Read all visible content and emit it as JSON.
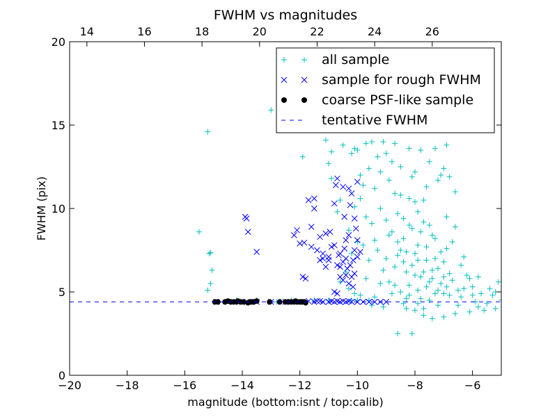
{
  "chart_data": {
    "type": "scatter",
    "title": "FWHM vs magnitudes",
    "xlabel": "magnitude (bottom:isnt / top:calib)",
    "ylabel": "FWHM (pix)",
    "xlim": [
      -20,
      -5
    ],
    "ylim": [
      0,
      20
    ],
    "x_ticks": [
      -20,
      -18,
      -16,
      -14,
      -12,
      -10,
      -8,
      -6
    ],
    "x_tick_labels": [
      "−20",
      "−18",
      "−16",
      "−14",
      "−12",
      "−10",
      "−8",
      "−6"
    ],
    "y_ticks": [
      0,
      5,
      10,
      15,
      20
    ],
    "y_tick_labels": [
      "0",
      "5",
      "10",
      "15",
      "20"
    ],
    "top_axis": {
      "offset": 33.4,
      "ticks": [
        14,
        16,
        18,
        20,
        22,
        24,
        26
      ],
      "tick_labels": [
        "14",
        "16",
        "18",
        "20",
        "22",
        "24",
        "26"
      ]
    },
    "legend_placement": "top-right",
    "series": [
      {
        "name": "all sample",
        "marker": "plus",
        "color": "#00bfbf",
        "points": [
          [
            -15.5,
            8.6
          ],
          [
            -15.2,
            14.6
          ],
          [
            -15.15,
            7.3
          ],
          [
            -15.1,
            7.35
          ],
          [
            -15.05,
            6.3
          ],
          [
            -15.1,
            5.5
          ],
          [
            -15.2,
            5.1
          ],
          [
            -12.8,
            4.4
          ],
          [
            -13.0,
            15.9
          ],
          [
            -11.9,
            13.1
          ],
          [
            -11.0,
            12.7
          ],
          [
            -10.9,
            11.8
          ],
          [
            -10.7,
            9.8
          ],
          [
            -10.6,
            10.5
          ],
          [
            -11.1,
            14.1
          ],
          [
            -10.9,
            13.4
          ],
          [
            -10.5,
            13.8
          ],
          [
            -10.2,
            13.3
          ],
          [
            -10.1,
            13.6
          ],
          [
            -10.0,
            13.5
          ],
          [
            -9.9,
            12.0
          ],
          [
            -9.7,
            13.9
          ],
          [
            -9.6,
            12.4
          ],
          [
            -9.5,
            14.0
          ],
          [
            -9.3,
            13.1
          ],
          [
            -9.1,
            14.0
          ],
          [
            -9.0,
            13.3
          ],
          [
            -8.8,
            12.8
          ],
          [
            -8.7,
            13.9
          ],
          [
            -8.5,
            12.5
          ],
          [
            -8.3,
            14.9
          ],
          [
            -8.2,
            13.6
          ],
          [
            -8.0,
            12.2
          ],
          [
            -7.8,
            13.5
          ],
          [
            -7.5,
            12.8
          ],
          [
            -7.3,
            13.6
          ],
          [
            -7.2,
            11.7
          ],
          [
            -6.9,
            13.8
          ],
          [
            -6.8,
            11.9
          ],
          [
            -6.6,
            11.0
          ],
          [
            -7.0,
            12.4
          ],
          [
            -7.6,
            11.3
          ],
          [
            -8.9,
            11.7
          ],
          [
            -9.4,
            11.2
          ],
          [
            -9.8,
            11.4
          ],
          [
            -9.9,
            10.6
          ],
          [
            -10.1,
            10.1
          ],
          [
            -10.3,
            8.7
          ],
          [
            -10.4,
            6.2
          ],
          [
            -10.6,
            5.6
          ],
          [
            -10.3,
            5.2
          ],
          [
            -10.1,
            4.9
          ],
          [
            -9.9,
            4.8
          ],
          [
            -9.6,
            6.9
          ],
          [
            -9.4,
            8.1
          ],
          [
            -9.2,
            10.0
          ],
          [
            -9.0,
            9.3
          ],
          [
            -8.8,
            8.6
          ],
          [
            -8.6,
            9.7
          ],
          [
            -8.5,
            10.8
          ],
          [
            -8.4,
            8.2
          ],
          [
            -8.3,
            7.4
          ],
          [
            -8.2,
            9.0
          ],
          [
            -8.1,
            8.8
          ],
          [
            -8.0,
            10.4
          ],
          [
            -7.9,
            6.9
          ],
          [
            -7.8,
            8.6
          ],
          [
            -7.7,
            6.2
          ],
          [
            -7.6,
            7.7
          ],
          [
            -7.5,
            9.0
          ],
          [
            -7.4,
            5.8
          ],
          [
            -7.3,
            7.0
          ],
          [
            -7.2,
            6.4
          ],
          [
            -7.1,
            5.5
          ],
          [
            -7.0,
            4.9
          ],
          [
            -6.9,
            5.3
          ],
          [
            -6.8,
            6.1
          ],
          [
            -6.7,
            5.7
          ],
          [
            -6.5,
            5.1
          ],
          [
            -6.4,
            4.7
          ],
          [
            -6.2,
            6.0
          ],
          [
            -6.0,
            5.3
          ],
          [
            -5.9,
            4.4
          ],
          [
            -5.7,
            4.9
          ],
          [
            -5.5,
            4.3
          ],
          [
            -5.3,
            4.8
          ],
          [
            -5.1,
            5.6
          ],
          [
            -5.0,
            4.5
          ],
          [
            -5.2,
            4.0
          ],
          [
            -5.6,
            3.9
          ],
          [
            -6.1,
            3.8
          ],
          [
            -6.6,
            3.7
          ],
          [
            -7.0,
            3.5
          ],
          [
            -7.4,
            3.4
          ],
          [
            -7.7,
            3.6
          ],
          [
            -8.0,
            3.9
          ],
          [
            -8.3,
            4.0
          ],
          [
            -8.6,
            2.5
          ],
          [
            -8.1,
            2.5
          ],
          [
            -9.1,
            4.1
          ],
          [
            -9.5,
            4.2
          ],
          [
            -8.9,
            5.6
          ],
          [
            -8.7,
            6.5
          ],
          [
            -8.5,
            5.0
          ],
          [
            -8.4,
            6.8
          ],
          [
            -8.2,
            5.4
          ],
          [
            -8.0,
            6.0
          ],
          [
            -7.9,
            5.1
          ],
          [
            -7.8,
            4.6
          ],
          [
            -7.6,
            5.3
          ],
          [
            -7.5,
            4.5
          ],
          [
            -7.3,
            4.9
          ],
          [
            -7.2,
            4.2
          ],
          [
            -7.0,
            6.8
          ],
          [
            -6.9,
            7.6
          ],
          [
            -6.7,
            8.0
          ],
          [
            -6.4,
            6.6
          ],
          [
            -6.3,
            7.1
          ],
          [
            -6.1,
            5.8
          ],
          [
            -5.8,
            5.9
          ],
          [
            -8.6,
            8.0
          ],
          [
            -8.4,
            9.4
          ],
          [
            -8.2,
            10.6
          ],
          [
            -8.1,
            11.9
          ],
          [
            -7.9,
            9.8
          ],
          [
            -7.7,
            9.2
          ],
          [
            -7.4,
            8.4
          ],
          [
            -7.1,
            7.4
          ],
          [
            -9.3,
            7.5
          ],
          [
            -9.1,
            6.3
          ],
          [
            -9.7,
            5.8
          ],
          [
            -8.8,
            4.9
          ],
          [
            -8.3,
            4.6
          ],
          [
            -7.1,
            12.0
          ],
          [
            -7.7,
            10.5
          ],
          [
            -8.7,
            10.9
          ],
          [
            -9.2,
            12.2
          ],
          [
            -9.7,
            9.5
          ],
          [
            -10.2,
            7.3
          ],
          [
            -10.0,
            8.0
          ],
          [
            -9.8,
            7.8
          ],
          [
            -9.5,
            9.1
          ],
          [
            -9.0,
            7.0
          ],
          [
            -8.9,
            8.4
          ],
          [
            -8.6,
            7.2
          ],
          [
            -8.1,
            6.6
          ],
          [
            -7.9,
            7.8
          ],
          [
            -7.6,
            6.9
          ],
          [
            -7.3,
            8.2
          ],
          [
            -6.9,
            9.5
          ],
          [
            -6.6,
            8.9
          ],
          [
            -6.3,
            5.2
          ],
          [
            -6.0,
            4.8
          ],
          [
            -5.4,
            5.2
          ],
          [
            -7.8,
            5.9
          ],
          [
            -7.2,
            5.1
          ],
          [
            -8.3,
            6.2
          ],
          [
            -8.5,
            7.5
          ],
          [
            -8.0,
            7.3
          ],
          [
            -7.4,
            6.3
          ],
          [
            -7.0,
            5.9
          ],
          [
            -6.8,
            4.8
          ],
          [
            -7.5,
            5.6
          ],
          [
            -7.9,
            4.3
          ],
          [
            -8.2,
            4.8
          ],
          [
            -5.2,
            5.0
          ],
          [
            -5.8,
            4.1
          ],
          [
            -6.5,
            4.2
          ],
          [
            -7.7,
            4.0
          ],
          [
            -8.4,
            4.3
          ],
          [
            -8.7,
            5.4
          ],
          [
            -9.2,
            5.5
          ],
          [
            -9.4,
            4.7
          ],
          [
            -10.2,
            4.5
          ],
          [
            -10.0,
            4.5
          ],
          [
            -9.6,
            4.5
          ],
          [
            -11.0,
            4.5
          ],
          [
            -11.5,
            4.5
          ],
          [
            -12.3,
            4.5
          ],
          [
            -13.5,
            4.5
          ],
          [
            -14.2,
            4.5
          ]
        ]
      },
      {
        "name": "sample for rough FWHM",
        "marker": "x",
        "color": "#0000ff",
        "points": [
          [
            -13.9,
            9.5
          ],
          [
            -13.85,
            9.4
          ],
          [
            -13.8,
            8.6
          ],
          [
            -13.5,
            7.4
          ],
          [
            -12.2,
            8.4
          ],
          [
            -12.0,
            7.9
          ],
          [
            -11.85,
            7.95
          ],
          [
            -12.1,
            8.7
          ],
          [
            -11.6,
            8.9
          ],
          [
            -11.5,
            10.6
          ],
          [
            -11.7,
            10.5
          ],
          [
            -11.5,
            10.0
          ],
          [
            -11.3,
            8.3
          ],
          [
            -11.2,
            7.3
          ],
          [
            -11.1,
            8.5
          ],
          [
            -11.0,
            7.1
          ],
          [
            -10.95,
            8.6
          ],
          [
            -10.8,
            10.3
          ],
          [
            -10.75,
            11.4
          ],
          [
            -10.7,
            11.8
          ],
          [
            -10.5,
            11.3
          ],
          [
            -10.45,
            9.5
          ],
          [
            -10.4,
            8.1
          ],
          [
            -10.6,
            7.3
          ],
          [
            -10.6,
            6.5
          ],
          [
            -10.5,
            6.8
          ],
          [
            -10.4,
            7.0
          ],
          [
            -10.35,
            6.4
          ],
          [
            -10.3,
            5.5
          ],
          [
            -10.2,
            5.9
          ],
          [
            -10.15,
            6.9
          ],
          [
            -10.1,
            7.5
          ],
          [
            -10.0,
            8.1
          ],
          [
            -10.05,
            8.8
          ],
          [
            -10.1,
            9.4
          ],
          [
            -10.2,
            10.9
          ],
          [
            -10.3,
            11.2
          ],
          [
            -10.0,
            11.6
          ],
          [
            -10.25,
            10.2
          ],
          [
            -10.3,
            8.4
          ],
          [
            -10.4,
            6.0
          ],
          [
            -10.5,
            5.7
          ],
          [
            -10.6,
            5.9
          ],
          [
            -10.7,
            6.6
          ],
          [
            -10.8,
            7.8
          ],
          [
            -10.9,
            7.7
          ],
          [
            -11.0,
            6.9
          ],
          [
            -11.1,
            6.5
          ],
          [
            -11.2,
            7.0
          ],
          [
            -11.3,
            6.9
          ],
          [
            -11.4,
            7.5
          ],
          [
            -11.6,
            7.7
          ],
          [
            -10.8,
            5.0
          ],
          [
            -10.7,
            4.9
          ],
          [
            -10.1,
            6.1
          ],
          [
            -10.0,
            7.1
          ],
          [
            -9.9,
            7.4
          ],
          [
            -10.15,
            5.3
          ],
          [
            -10.25,
            6.6
          ],
          [
            -10.45,
            7.6
          ],
          [
            -11.9,
            5.9
          ],
          [
            -11.8,
            5.8
          ],
          [
            -10.65,
            7.2
          ],
          [
            -14.9,
            4.4
          ],
          [
            -14.5,
            4.4
          ],
          [
            -14.0,
            4.4
          ],
          [
            -13.5,
            4.4
          ],
          [
            -13.0,
            4.4
          ],
          [
            -12.5,
            4.4
          ],
          [
            -12.0,
            4.4
          ],
          [
            -11.5,
            4.4
          ],
          [
            -11.2,
            4.4
          ],
          [
            -11.0,
            4.4
          ],
          [
            -10.8,
            4.4
          ],
          [
            -10.6,
            4.4
          ],
          [
            -10.4,
            4.4
          ],
          [
            -10.2,
            4.4
          ],
          [
            -10.0,
            4.4
          ],
          [
            -9.8,
            4.4
          ],
          [
            -9.6,
            4.4
          ],
          [
            -9.4,
            4.4
          ],
          [
            -9.2,
            4.4
          ],
          [
            -9.0,
            4.4
          ],
          [
            -11.4,
            4.45
          ],
          [
            -11.7,
            4.45
          ],
          [
            -11.3,
            4.45
          ],
          [
            -10.9,
            4.45
          ],
          [
            -10.7,
            4.45
          ],
          [
            -10.5,
            4.45
          ],
          [
            -10.3,
            4.45
          ]
        ]
      },
      {
        "name": "coarse PSF-like sample",
        "marker": "circle",
        "color": "#000000",
        "points": [
          [
            -14.95,
            4.4
          ],
          [
            -14.85,
            4.4
          ],
          [
            -14.6,
            4.4
          ],
          [
            -14.5,
            4.45
          ],
          [
            -14.4,
            4.4
          ],
          [
            -14.3,
            4.4
          ],
          [
            -14.2,
            4.4
          ],
          [
            -14.15,
            4.45
          ],
          [
            -14.05,
            4.4
          ],
          [
            -13.95,
            4.4
          ],
          [
            -13.8,
            4.35
          ],
          [
            -13.75,
            4.4
          ],
          [
            -13.7,
            4.4
          ],
          [
            -13.65,
            4.4
          ],
          [
            -13.6,
            4.4
          ],
          [
            -13.5,
            4.45
          ],
          [
            -13.05,
            4.4
          ],
          [
            -12.7,
            4.4
          ],
          [
            -12.5,
            4.4
          ],
          [
            -12.4,
            4.4
          ],
          [
            -12.3,
            4.4
          ],
          [
            -12.2,
            4.4
          ],
          [
            -12.15,
            4.45
          ],
          [
            -12.1,
            4.4
          ],
          [
            -12.0,
            4.4
          ],
          [
            -11.95,
            4.4
          ],
          [
            -11.85,
            4.4
          ],
          [
            -11.8,
            4.35
          ]
        ]
      },
      {
        "name": "tentative FWHM",
        "marker": "dashed-line",
        "color": "#0000ff",
        "y": 4.4
      }
    ]
  }
}
